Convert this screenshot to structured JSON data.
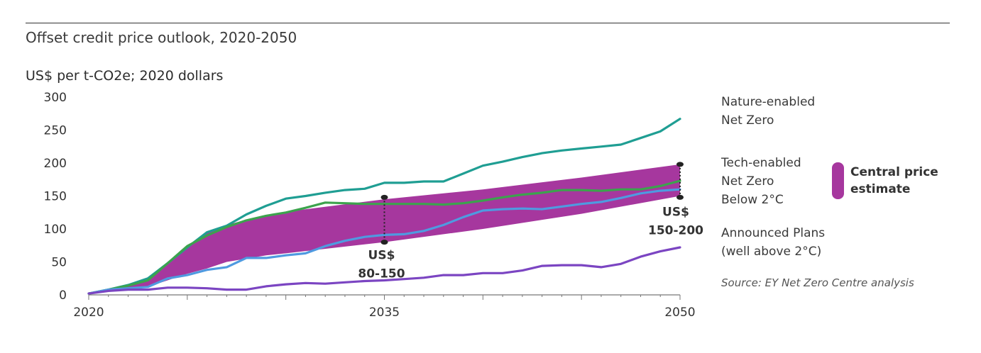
{
  "chart_data": {
    "type": "line",
    "title": "Offset credit price outlook, 2020-2050",
    "ylabel": "US$ per t-CO2e; 2020 dollars",
    "xlabel": "",
    "xlim": [
      2020,
      2050
    ],
    "ylim": [
      0,
      300
    ],
    "x_ticks": [
      2020,
      2035,
      2050
    ],
    "y_ticks": [
      0,
      50,
      100,
      150,
      200,
      250,
      300
    ],
    "grid": false,
    "legend_placement": "right",
    "x": [
      2020,
      2021,
      2022,
      2023,
      2024,
      2025,
      2026,
      2027,
      2028,
      2029,
      2030,
      2031,
      2032,
      2033,
      2034,
      2035,
      2036,
      2037,
      2038,
      2039,
      2040,
      2041,
      2042,
      2043,
      2044,
      2045,
      2046,
      2047,
      2048,
      2049,
      2050
    ],
    "series": [
      {
        "name": "Nature-enabled Net Zero",
        "color": "#1f9e93",
        "values": [
          2,
          8,
          15,
          25,
          48,
          72,
          95,
          105,
          122,
          135,
          146,
          150,
          155,
          159,
          161,
          170,
          170,
          172,
          172,
          184,
          196,
          202,
          209,
          215,
          219,
          222,
          225,
          228,
          238,
          248,
          267
        ]
      },
      {
        "name": "Tech-enabled Net Zero",
        "color": "#3ca34d",
        "values": [
          2,
          8,
          14,
          22,
          48,
          74,
          90,
          103,
          113,
          120,
          125,
          132,
          140,
          139,
          138,
          138,
          138,
          138,
          137,
          139,
          143,
          148,
          152,
          155,
          159,
          159,
          158,
          160,
          160,
          165,
          173
        ]
      },
      {
        "name": "Below 2°C",
        "color": "#4f9ae0",
        "values": [
          2,
          8,
          10,
          12,
          25,
          30,
          38,
          42,
          56,
          56,
          60,
          63,
          74,
          82,
          88,
          91,
          92,
          97,
          106,
          118,
          128,
          130,
          131,
          130,
          134,
          138,
          141,
          147,
          154,
          158,
          160
        ]
      },
      {
        "name": "Announced Plans (well above 2°C)",
        "color": "#7b45c2",
        "values": [
          2,
          6,
          8,
          8,
          11,
          11,
          10,
          8,
          8,
          13,
          16,
          18,
          17,
          19,
          21,
          22,
          24,
          26,
          30,
          30,
          33,
          33,
          37,
          44,
          45,
          45,
          42,
          47,
          58,
          66,
          72
        ]
      }
    ],
    "band": {
      "name": "Central price estimate",
      "color": "#a6379e",
      "x": [
        2020,
        2021,
        2022,
        2023,
        2024,
        2025,
        2026,
        2027,
        2028,
        2029,
        2030,
        2035,
        2040,
        2045,
        2050
      ],
      "low": [
        2,
        6,
        8,
        12,
        22,
        32,
        40,
        50,
        55,
        60,
        63,
        80,
        100,
        123,
        150
      ],
      "high": [
        2,
        8,
        14,
        22,
        48,
        74,
        94,
        106,
        114,
        121,
        126,
        145,
        160,
        178,
        198
      ]
    },
    "annotations": [
      {
        "x": 2035,
        "low": 80,
        "high": 148,
        "label_line1": "US$",
        "label_line2": "80-150"
      },
      {
        "x": 2050,
        "low": 148,
        "high": 198,
        "label_line1": "US$",
        "label_line2": "150-200"
      }
    ],
    "legend_labels": {
      "nature_line1": "Nature-enabled",
      "nature_line2": "Net Zero",
      "tech_line1": "Tech-enabled",
      "tech_line2": "Net Zero",
      "below2": "Below 2°C",
      "announced_line1": "Announced Plans",
      "announced_line2": "(well above 2°C)",
      "central_line1": "Central price",
      "central_line2": "estimate"
    },
    "source": "Source: EY Net Zero Centre analysis"
  }
}
